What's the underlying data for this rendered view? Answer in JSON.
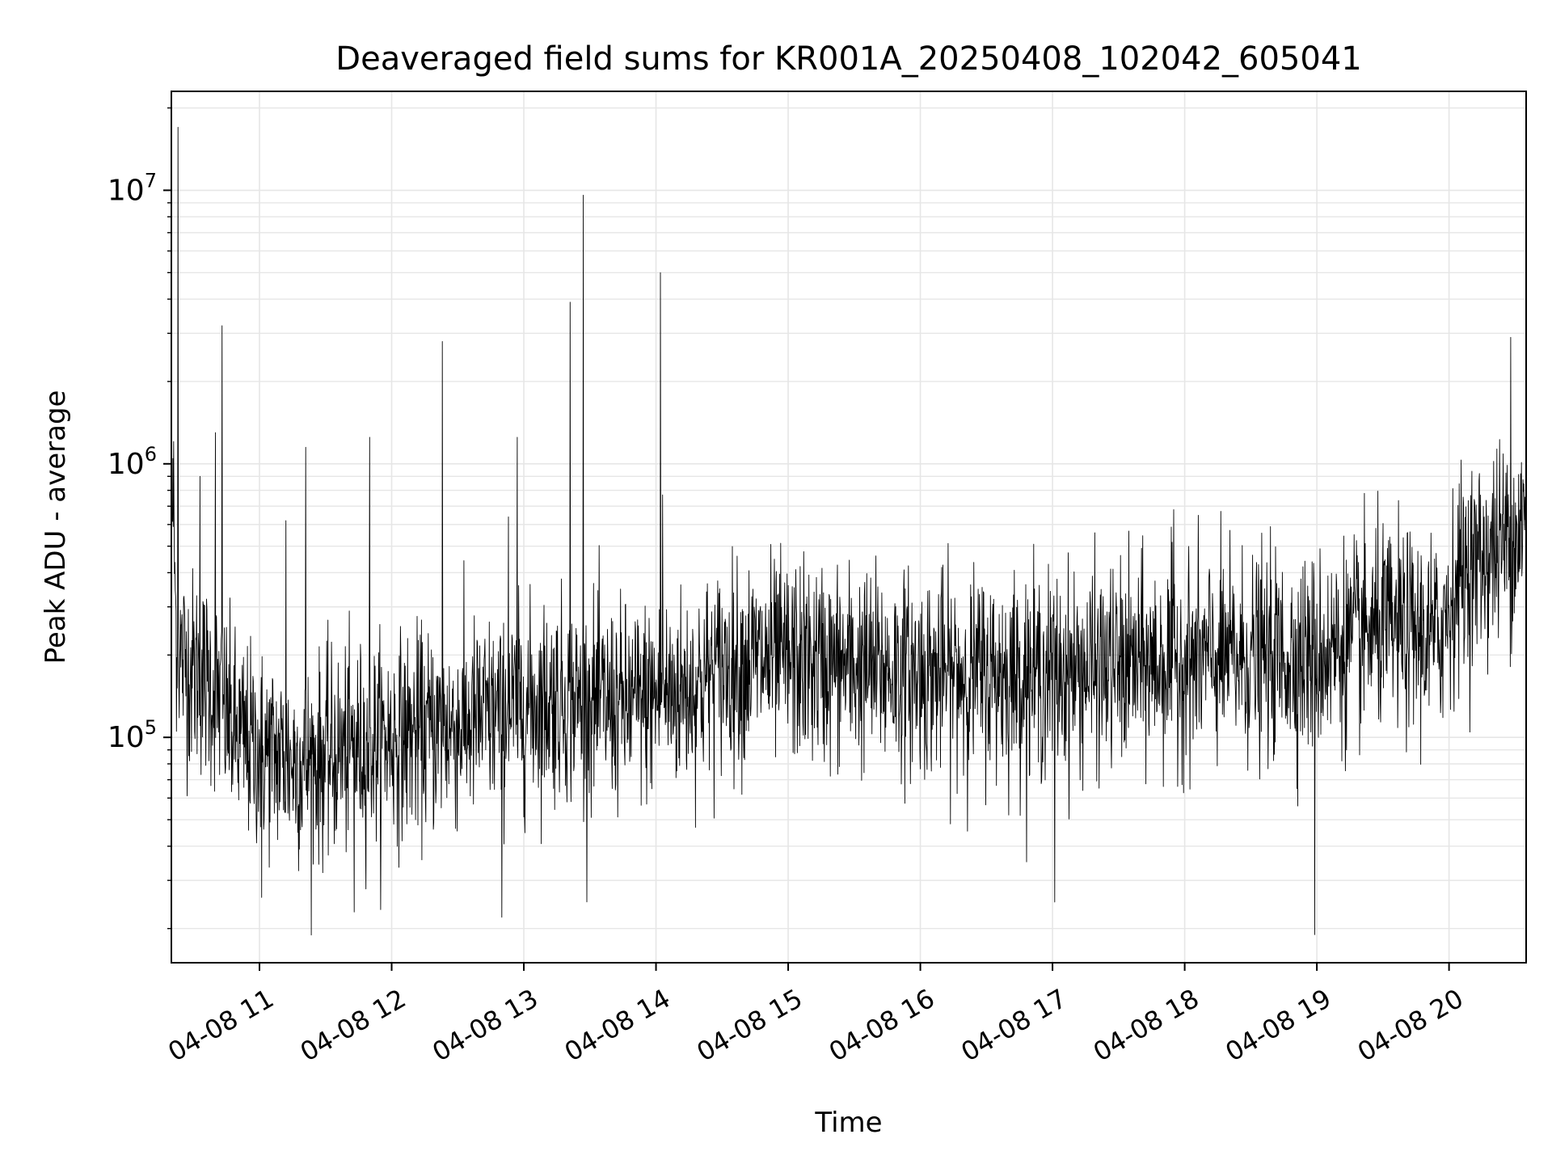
{
  "chart_data": {
    "type": "line",
    "title": "Deaveraged field sums for KR001A_20250408_102042_605041",
    "xlabel": "Time",
    "ylabel": "Peak ADU - average",
    "xlim": [
      "2025-04-08 10:20",
      "2025-04-08 20:35"
    ],
    "ylim": [
      15000,
      23000000
    ],
    "y_scale": "log",
    "grid": true,
    "grid_color": "#e6e6e6",
    "line_color": "#000000",
    "x_ticks": [
      {
        "value": "2025-04-08 11:00",
        "label": "04-08 11"
      },
      {
        "value": "2025-04-08 12:00",
        "label": "04-08 12"
      },
      {
        "value": "2025-04-08 13:00",
        "label": "04-08 13"
      },
      {
        "value": "2025-04-08 14:00",
        "label": "04-08 14"
      },
      {
        "value": "2025-04-08 15:00",
        "label": "04-08 15"
      },
      {
        "value": "2025-04-08 16:00",
        "label": "04-08 16"
      },
      {
        "value": "2025-04-08 17:00",
        "label": "04-08 17"
      },
      {
        "value": "2025-04-08 18:00",
        "label": "04-08 18"
      },
      {
        "value": "2025-04-08 19:00",
        "label": "04-08 19"
      },
      {
        "value": "2025-04-08 20:00",
        "label": "04-08 20"
      }
    ],
    "y_ticks": [
      {
        "value": 100000,
        "base": "10",
        "exp": "5"
      },
      {
        "value": 1000000,
        "base": "10",
        "exp": "6"
      },
      {
        "value": 10000000,
        "base": "10",
        "exp": "7"
      }
    ],
    "series": [
      {
        "x": [
          "2025-04-08 10:21",
          "2025-04-08 10:22",
          "2025-04-08 10:24",
          "2025-04-08 10:28",
          "2025-04-08 10:33",
          "2025-04-08 10:40",
          "2025-04-08 10:45",
          "2025-04-08 10:50",
          "2025-04-08 10:55",
          "2025-04-08 11:00",
          "2025-04-08 11:10",
          "2025-04-08 11:20",
          "2025-04-08 11:30",
          "2025-04-08 11:40",
          "2025-04-08 11:50",
          "2025-04-08 12:00",
          "2025-04-08 12:15",
          "2025-04-08 12:30",
          "2025-04-08 12:45",
          "2025-04-08 13:00",
          "2025-04-08 13:15",
          "2025-04-08 13:30",
          "2025-04-08 13:45",
          "2025-04-08 14:00",
          "2025-04-08 14:15",
          "2025-04-08 14:30",
          "2025-04-08 14:45",
          "2025-04-08 15:00",
          "2025-04-08 15:30",
          "2025-04-08 16:00",
          "2025-04-08 16:30",
          "2025-04-08 17:00",
          "2025-04-08 17:30",
          "2025-04-08 18:00",
          "2025-04-08 18:30",
          "2025-04-08 19:00",
          "2025-04-08 19:30",
          "2025-04-08 19:55",
          "2025-04-08 20:05",
          "2025-04-08 20:15",
          "2025-04-08 20:25",
          "2025-04-08 20:34"
        ],
        "y": [
          700000,
          260000,
          200000,
          180000,
          170000,
          150000,
          120000,
          100000,
          95000,
          90000,
          85000,
          80000,
          85000,
          90000,
          95000,
          100000,
          105000,
          110000,
          120000,
          130000,
          140000,
          135000,
          130000,
          140000,
          150000,
          180000,
          190000,
          190000,
          180000,
          170000,
          170000,
          170000,
          180000,
          190000,
          195000,
          200000,
          250000,
          230000,
          400000,
          450000,
          520000,
          600000
        ],
        "spikes": [
          {
            "x": "2025-04-08 10:23",
            "y": 17000000
          },
          {
            "x": "2025-04-08 10:43",
            "y": 3200000
          },
          {
            "x": "2025-04-08 10:40",
            "y": 1300000
          },
          {
            "x": "2025-04-08 10:33",
            "y": 900000
          },
          {
            "x": "2025-04-08 11:21",
            "y": 1150000
          },
          {
            "x": "2025-04-08 11:12",
            "y": 620000
          },
          {
            "x": "2025-04-08 11:50",
            "y": 1250000
          },
          {
            "x": "2025-04-08 12:23",
            "y": 2800000
          },
          {
            "x": "2025-04-08 12:57",
            "y": 1250000
          },
          {
            "x": "2025-04-08 12:53",
            "y": 640000
          },
          {
            "x": "2025-04-08 13:21",
            "y": 3900000
          },
          {
            "x": "2025-04-08 13:27",
            "y": 9600000
          },
          {
            "x": "2025-04-08 14:02",
            "y": 5000000
          },
          {
            "x": "2025-04-08 14:03",
            "y": 770000
          },
          {
            "x": "2025-04-08 17:55",
            "y": 680000
          },
          {
            "x": "2025-04-08 20:28",
            "y": 2900000
          }
        ],
        "dips": [
          {
            "x": "2025-04-08 12:50",
            "y": 22000
          },
          {
            "x": "2025-04-08 18:59",
            "y": 19000
          },
          {
            "x": "2025-04-08 11:43",
            "y": 23000
          },
          {
            "x": "2025-04-08 11:01",
            "y": 26000
          },
          {
            "x": "2025-04-08 17:01",
            "y": 25000
          }
        ]
      }
    ]
  }
}
